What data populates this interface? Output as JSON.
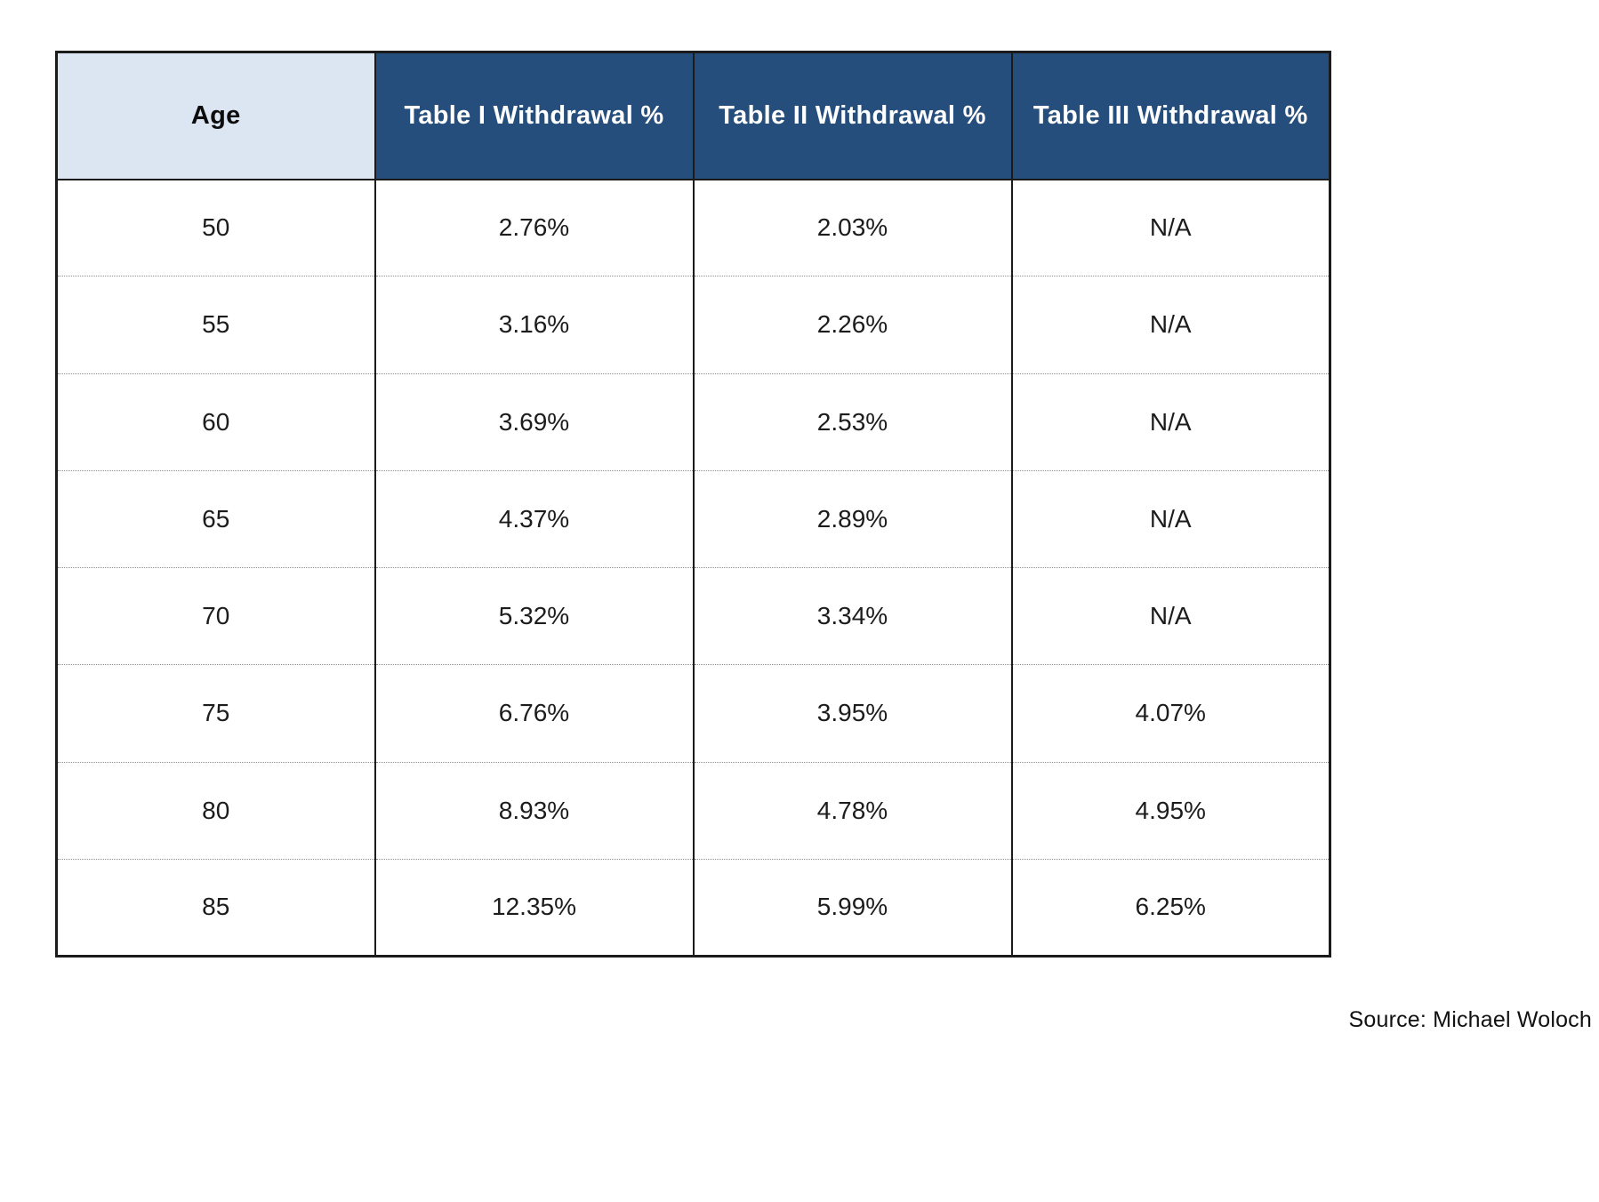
{
  "chart_data": {
    "type": "table",
    "title": "",
    "columns": [
      "Age",
      "Table I Withdrawal %",
      "Table II Withdrawal %",
      "Table III Withdrawal %"
    ],
    "rows": [
      [
        "50",
        "2.76%",
        "2.03%",
        "N/A"
      ],
      [
        "55",
        "3.16%",
        "2.26%",
        "N/A"
      ],
      [
        "60",
        "3.69%",
        "2.53%",
        "N/A"
      ],
      [
        "65",
        "4.37%",
        "2.89%",
        "N/A"
      ],
      [
        "70",
        "5.32%",
        "3.34%",
        "N/A"
      ],
      [
        "75",
        "6.76%",
        "3.95%",
        "4.07%"
      ],
      [
        "80",
        "8.93%",
        "4.78%",
        "4.95%"
      ],
      [
        "85",
        "12.35%",
        "5.99%",
        "6.25%"
      ]
    ],
    "source": "Source: Michael Woloch"
  },
  "table": {
    "columns": [
      {
        "label": "Age"
      },
      {
        "label": "Table I Withdrawal %"
      },
      {
        "label": "Table II Withdrawal %"
      },
      {
        "label": "Table III Withdrawal %"
      }
    ],
    "rows": [
      [
        "50",
        "2.76%",
        "2.03%",
        "N/A"
      ],
      [
        "55",
        "3.16%",
        "2.26%",
        "N/A"
      ],
      [
        "60",
        "3.69%",
        "2.53%",
        "N/A"
      ],
      [
        "65",
        "4.37%",
        "2.89%",
        "N/A"
      ],
      [
        "70",
        "5.32%",
        "3.34%",
        "N/A"
      ],
      [
        "75",
        "6.76%",
        "3.95%",
        "4.07%"
      ],
      [
        "80",
        "8.93%",
        "4.78%",
        "4.95%"
      ],
      [
        "85",
        "12.35%",
        "5.99%",
        "6.25%"
      ]
    ]
  },
  "source": {
    "label": "Source: Michael Woloch"
  },
  "colors": {
    "header_dark_blue": "#254E7C",
    "header_light_blue": "#DCE6F2",
    "border": "#1B1B1B",
    "row_divider": "#8D8D8D"
  }
}
